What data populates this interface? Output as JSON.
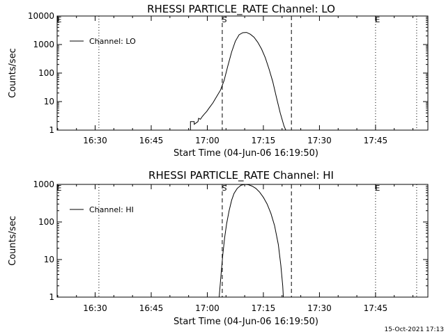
{
  "chart_data": [
    {
      "type": "line",
      "title": "RHESSI PARTICLE_RATE Channel: LO",
      "xlabel": "Start Time (04-Jun-06 16:19:50)",
      "ylabel": "Counts/sec",
      "yscale": "log",
      "xlim": [
        "16:19:50",
        "17:59:00"
      ],
      "ylim": [
        1,
        10000
      ],
      "x_ticks": [
        "16:30",
        "16:45",
        "17:00",
        "17:15",
        "17:30",
        "17:45"
      ],
      "y_ticks": [
        "1",
        "10",
        "100",
        "1000",
        "10000"
      ],
      "legend": {
        "entries": [
          "Channel: LO"
        ],
        "location": "top-left"
      },
      "markers": [
        {
          "label": "E",
          "time": "16:19:50",
          "style": "dotted"
        },
        {
          "label": "",
          "time": "16:31:00",
          "style": "dotted"
        },
        {
          "label": "S",
          "time": "17:04:00",
          "style": "dashed"
        },
        {
          "label": "",
          "time": "17:22:30",
          "style": "dashed"
        },
        {
          "label": "E",
          "time": "17:45:00",
          "style": "dotted"
        },
        {
          "label": "",
          "time": "17:56:00",
          "style": "dotted"
        }
      ],
      "series": [
        {
          "name": "Channel: LO",
          "x": [
            "16:54:20",
            "16:55:30",
            "16:55:30",
            "16:56:30",
            "16:56:30",
            "16:57:30",
            "16:57:40",
            "16:58:10",
            "16:58:40",
            "16:59:10",
            "16:59:50",
            "17:00:30",
            "17:01:30",
            "17:02:30",
            "17:03:30",
            "17:04:30",
            "17:05:30",
            "17:06:30",
            "17:07:30",
            "17:08:30",
            "17:09:30",
            "17:10:30",
            "17:11:30",
            "17:12:30",
            "17:13:30",
            "17:14:30",
            "17:15:30",
            "17:16:30",
            "17:17:30",
            "17:18:30",
            "17:19:30",
            "17:20:30",
            "17:21:00"
          ],
          "y": [
            1,
            1,
            2,
            2,
            1.6,
            2,
            2.6,
            2.4,
            3,
            3.6,
            4.5,
            6,
            9,
            15,
            25,
            55,
            180,
            550,
            1300,
            2200,
            2600,
            2650,
            2300,
            1800,
            1200,
            700,
            350,
            140,
            50,
            14,
            4,
            1.4,
            1
          ]
        }
      ]
    },
    {
      "type": "line",
      "title": "RHESSI PARTICLE_RATE Channel: HI",
      "xlabel": "Start Time (04-Jun-06 16:19:50)",
      "ylabel": "Counts/sec",
      "yscale": "log",
      "xlim": [
        "16:19:50",
        "17:59:00"
      ],
      "ylim": [
        1,
        1000
      ],
      "x_ticks": [
        "16:30",
        "16:45",
        "17:00",
        "17:15",
        "17:30",
        "17:45"
      ],
      "y_ticks": [
        "1",
        "10",
        "100",
        "1000"
      ],
      "legend": {
        "entries": [
          "Channel: HI"
        ],
        "location": "top-left"
      },
      "markers": [
        {
          "label": "E",
          "time": "16:19:50",
          "style": "dotted"
        },
        {
          "label": "",
          "time": "16:31:00",
          "style": "dotted"
        },
        {
          "label": "S",
          "time": "17:04:00",
          "style": "dashed"
        },
        {
          "label": "",
          "time": "17:22:30",
          "style": "dashed"
        },
        {
          "label": "E",
          "time": "17:45:00",
          "style": "dotted"
        },
        {
          "label": "",
          "time": "17:56:00",
          "style": "dotted"
        }
      ],
      "series": [
        {
          "name": "Channel: HI",
          "x": [
            "17:03:10",
            "17:03:40",
            "17:04:10",
            "17:04:40",
            "17:05:10",
            "17:05:50",
            "17:06:30",
            "17:07:10",
            "17:08:00",
            "17:09:00",
            "17:10:00",
            "17:11:00",
            "17:12:00",
            "17:13:00",
            "17:14:00",
            "17:15:00",
            "17:16:00",
            "17:17:00",
            "17:18:00",
            "17:19:00",
            "17:19:40",
            "17:20:10",
            "17:20:20"
          ],
          "y": [
            1,
            4,
            14,
            40,
            90,
            200,
            380,
            580,
            780,
            950,
            1000,
            980,
            900,
            780,
            620,
            450,
            300,
            170,
            80,
            25,
            7,
            2,
            1
          ]
        }
      ]
    }
  ],
  "timestamp": "15-Oct-2021 17:13"
}
